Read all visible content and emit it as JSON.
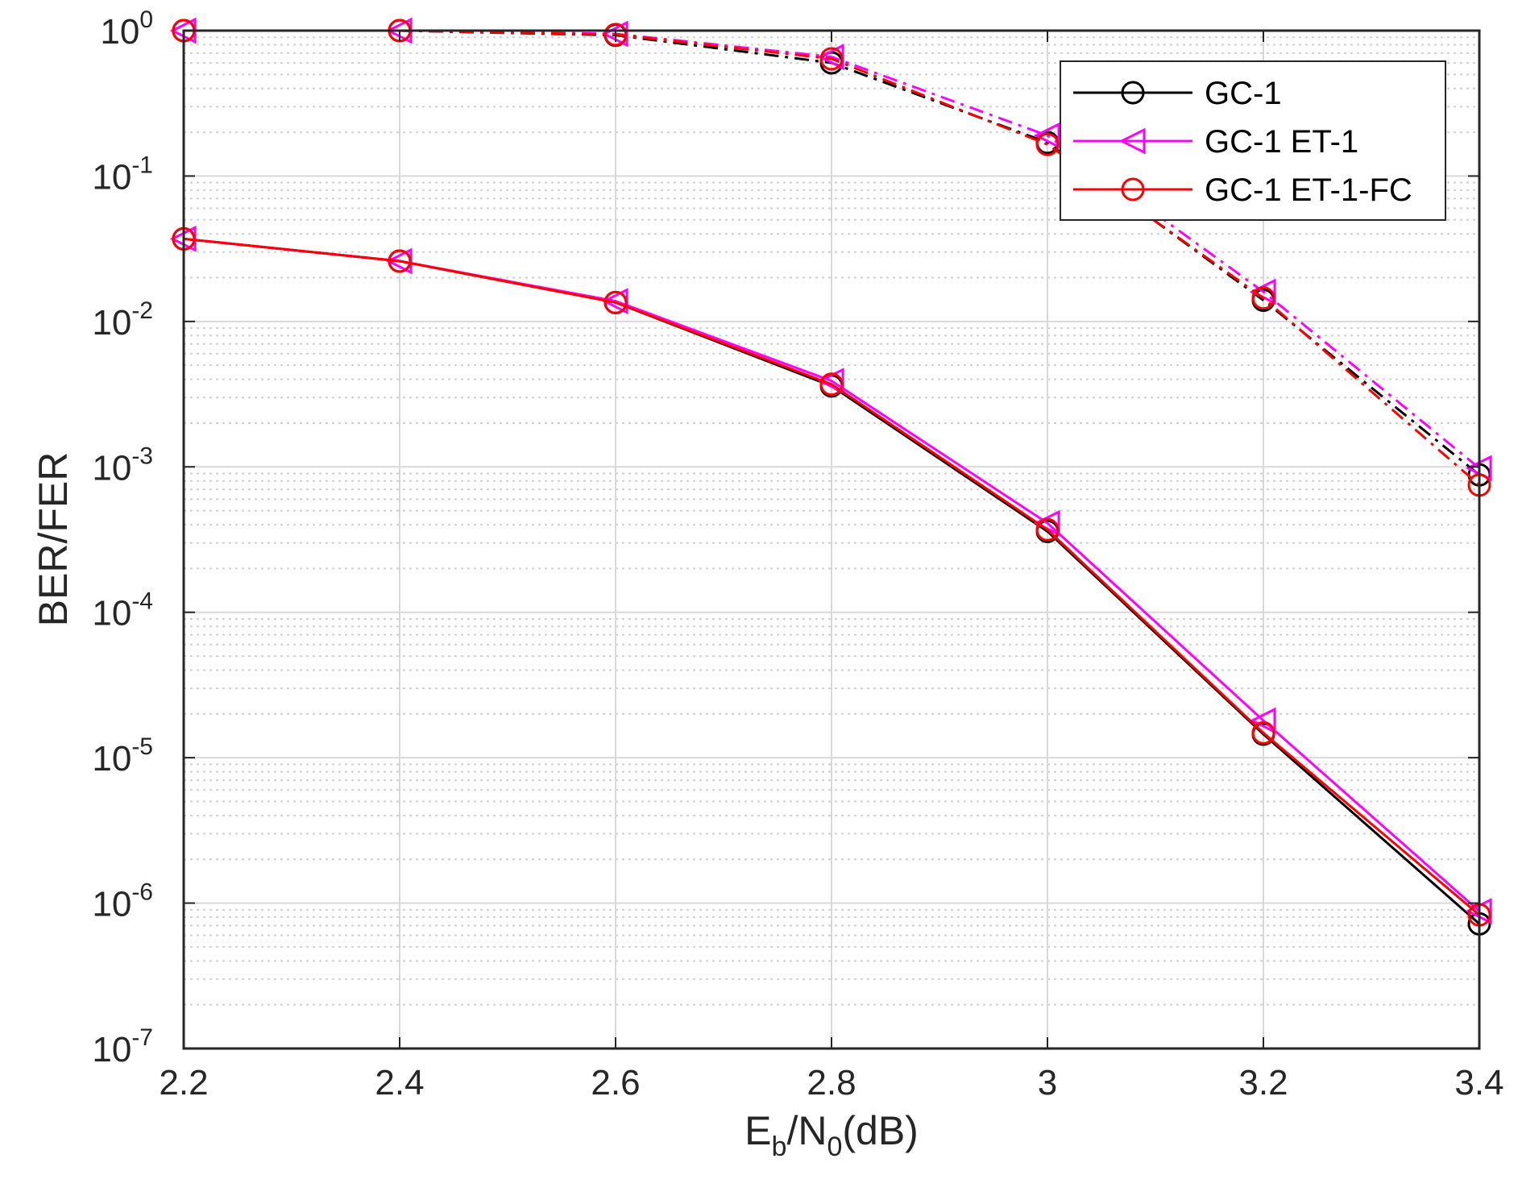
{
  "chart_data": {
    "type": "line",
    "title": "",
    "xlabel": {
      "main": "E",
      "sub1": "b",
      "mid": "/N",
      "sub2": "0",
      "tail": "(dB)"
    },
    "ylabel": "BER/FER",
    "x_scale": "linear",
    "y_scale": "log",
    "xlim": [
      2.2,
      3.4
    ],
    "ylim": [
      1e-07,
      1
    ],
    "x_ticks": [
      "2.2",
      "2.4",
      "2.6",
      "2.8",
      "3",
      "3.2",
      "3.4"
    ],
    "y_ticks": [
      {
        "base": "10",
        "exp": "0"
      },
      {
        "base": "10",
        "exp": "-1"
      },
      {
        "base": "10",
        "exp": "-2"
      },
      {
        "base": "10",
        "exp": "-3"
      },
      {
        "base": "10",
        "exp": "-4"
      },
      {
        "base": "10",
        "exp": "-5"
      },
      {
        "base": "10",
        "exp": "-6"
      },
      {
        "base": "10",
        "exp": "-7"
      }
    ],
    "grid": true,
    "minor_grid": true,
    "legend_position": "top-right",
    "x": [
      2.2,
      2.4,
      2.6,
      2.8,
      3.0,
      3.2,
      3.4
    ],
    "series": [
      {
        "name": "GC-1",
        "metric": "FER",
        "color": "#000000",
        "marker": "circle",
        "line_style": "dash-dot",
        "values": [
          1.0,
          1.0,
          0.93,
          0.6,
          0.17,
          0.014,
          0.00088
        ]
      },
      {
        "name": "GC-1 ET-1",
        "metric": "FER",
        "color": "#ff00ff",
        "marker": "triangle-left",
        "line_style": "dash-dot",
        "values": [
          1.0,
          1.0,
          0.95,
          0.66,
          0.19,
          0.016,
          0.00098
        ]
      },
      {
        "name": "GC-1 ET-1-FC",
        "metric": "FER",
        "color": "#ff0000",
        "marker": "circle",
        "line_style": "dash-dot",
        "values": [
          1.0,
          1.0,
          0.94,
          0.64,
          0.165,
          0.0145,
          0.00075
        ]
      },
      {
        "name": "GC-1",
        "metric": "BER",
        "color": "#000000",
        "marker": "circle",
        "line_style": "solid",
        "values": [
          0.037,
          0.026,
          0.0135,
          0.0036,
          0.00036,
          1.45e-05,
          7.2e-07
        ]
      },
      {
        "name": "GC-1 ET-1",
        "metric": "BER",
        "color": "#ff00ff",
        "marker": "triangle-left",
        "line_style": "solid",
        "values": [
          0.037,
          0.026,
          0.0138,
          0.0039,
          0.00041,
          1.8e-05,
          8.8e-07
        ]
      },
      {
        "name": "GC-1 ET-1-FC",
        "metric": "BER",
        "color": "#ff0000",
        "marker": "circle",
        "line_style": "solid",
        "values": [
          0.037,
          0.026,
          0.0135,
          0.0037,
          0.00037,
          1.48e-05,
          8.3e-07
        ]
      }
    ],
    "legend": [
      {
        "label": "GC-1",
        "color": "#000000",
        "marker": "circle"
      },
      {
        "label": "GC-1 ET-1",
        "color": "#ff00ff",
        "marker": "triangle-left"
      },
      {
        "label": "GC-1 ET-1-FC",
        "color": "#ff0000",
        "marker": "circle"
      }
    ]
  }
}
